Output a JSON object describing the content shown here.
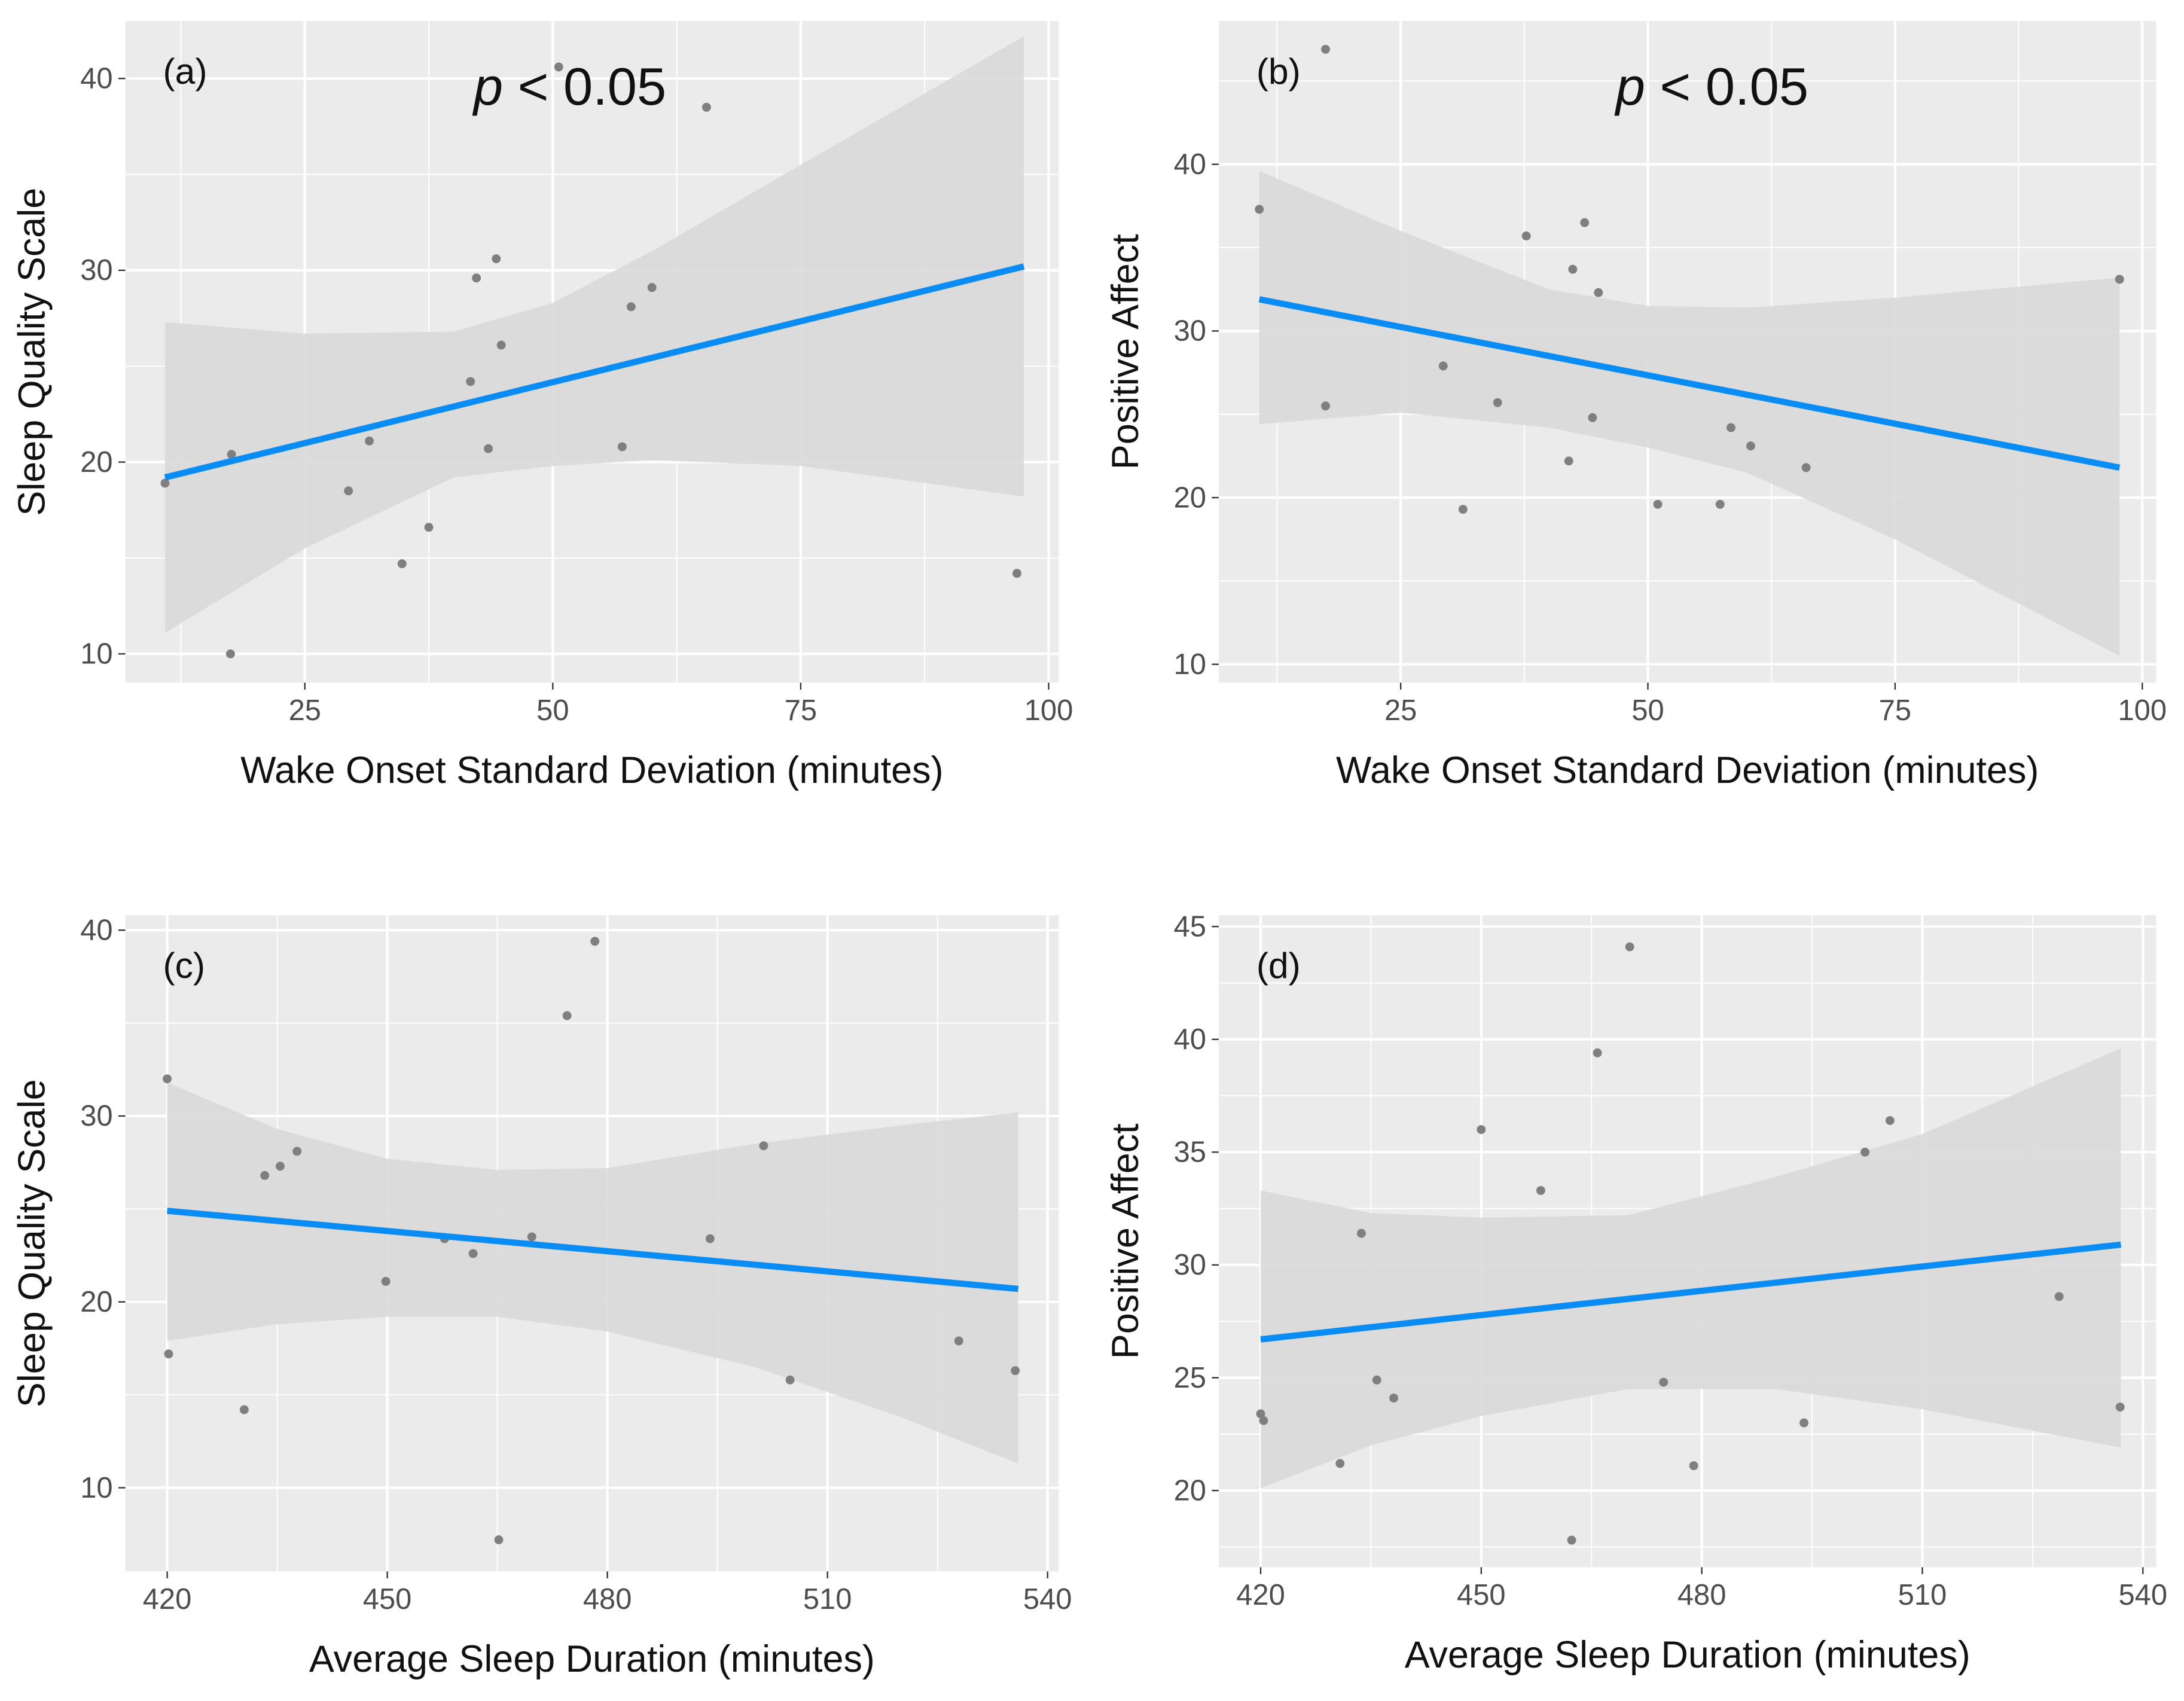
{
  "colors": {
    "panel_bg": "#EBEBEB",
    "grid": "#FFFFFF",
    "ribbon": "#D9D9D9",
    "line": "#0A8CF5",
    "point": "#7F7F7F",
    "tick_text": "#4D4D4D"
  },
  "chart_data": [
    {
      "type": "scatter",
      "panel_label": "(a)",
      "annotation": {
        "p": "p",
        "rest": " < 0.05"
      },
      "xlabel": "Wake Onset Standard Deviation (minutes)",
      "ylabel": "Sleep Quality Scale",
      "xlim": [
        6.9,
        101
      ],
      "ylim": [
        8.5,
        43
      ],
      "xticks": [
        25,
        50,
        75,
        100
      ],
      "yticks": [
        10,
        20,
        30,
        40
      ],
      "points": [
        [
          10.9,
          18.9
        ],
        [
          17.6,
          20.4
        ],
        [
          17.5,
          10.0
        ],
        [
          29.4,
          18.5
        ],
        [
          31.5,
          21.1
        ],
        [
          34.8,
          14.7
        ],
        [
          37.5,
          16.6
        ],
        [
          41.7,
          24.2
        ],
        [
          42.3,
          29.6
        ],
        [
          43.5,
          20.7
        ],
        [
          44.3,
          30.6
        ],
        [
          44.8,
          26.1
        ],
        [
          50.6,
          40.6
        ],
        [
          57.0,
          20.8
        ],
        [
          57.9,
          28.1
        ],
        [
          60.0,
          29.1
        ],
        [
          65.5,
          38.5
        ],
        [
          96.8,
          14.2
        ]
      ],
      "fit": [
        [
          10.9,
          19.2
        ],
        [
          97.5,
          30.2
        ]
      ],
      "ribbon": {
        "x": [
          10.9,
          25,
          40,
          50,
          60,
          75,
          97.5
        ],
        "upper": [
          27.3,
          26.7,
          26.8,
          28.3,
          31.0,
          35.5,
          42.2
        ],
        "lower": [
          11.1,
          15.5,
          19.2,
          19.8,
          20.1,
          19.8,
          18.2
        ]
      }
    },
    {
      "type": "scatter",
      "panel_label": "(b)",
      "annotation": {
        "p": "p",
        "rest": " < 0.05"
      },
      "xlabel": "Wake Onset Standard Deviation (minutes)",
      "ylabel": "Positive Affect",
      "xlim": [
        6.6,
        101.4
      ],
      "ylim": [
        8.9,
        48.6
      ],
      "xticks": [
        25,
        50,
        75,
        100
      ],
      "yticks": [
        10,
        20,
        30,
        40
      ],
      "points": [
        [
          10.7,
          37.3
        ],
        [
          17.4,
          46.9
        ],
        [
          17.4,
          25.5
        ],
        [
          29.3,
          27.9
        ],
        [
          31.3,
          19.3
        ],
        [
          34.8,
          25.7
        ],
        [
          37.7,
          35.7
        ],
        [
          42.0,
          22.2
        ],
        [
          42.4,
          33.7
        ],
        [
          43.6,
          36.5
        ],
        [
          44.4,
          24.8
        ],
        [
          45.0,
          32.3
        ],
        [
          51.0,
          19.6
        ],
        [
          57.3,
          19.6
        ],
        [
          58.4,
          24.2
        ],
        [
          60.4,
          23.1
        ],
        [
          66.0,
          21.8
        ],
        [
          97.7,
          33.1
        ]
      ],
      "fit": [
        [
          10.7,
          31.9
        ],
        [
          97.7,
          21.8
        ]
      ],
      "ribbon": {
        "x": [
          10.7,
          25,
          40,
          50,
          60,
          75,
          97.7
        ],
        "upper": [
          39.6,
          36.0,
          32.5,
          31.5,
          31.4,
          32.0,
          33.2
        ],
        "lower": [
          24.4,
          25.1,
          24.2,
          23.0,
          21.5,
          17.5,
          10.5
        ]
      }
    },
    {
      "type": "scatter",
      "panel_label": "(c)",
      "xlabel": "Average Sleep Duration (minutes)",
      "ylabel": "Sleep Quality Scale",
      "xlim": [
        414.3,
        541.5
      ],
      "ylim": [
        5.5,
        40.8
      ],
      "xticks": [
        420,
        450,
        480,
        510,
        540
      ],
      "yticks": [
        10,
        20,
        30,
        40
      ],
      "points": [
        [
          420,
          32.0
        ],
        [
          420.2,
          17.2
        ],
        [
          430.5,
          14.2
        ],
        [
          433.3,
          26.8
        ],
        [
          435.4,
          27.3
        ],
        [
          437.7,
          28.1
        ],
        [
          449.8,
          21.1
        ],
        [
          457.8,
          23.4
        ],
        [
          461.7,
          22.6
        ],
        [
          465.2,
          7.2
        ],
        [
          469.7,
          23.5
        ],
        [
          474.5,
          35.4
        ],
        [
          478.3,
          39.4
        ],
        [
          494,
          23.4
        ],
        [
          501.3,
          28.4
        ],
        [
          504.9,
          15.8
        ],
        [
          527.9,
          17.9
        ],
        [
          535.6,
          16.3
        ]
      ],
      "fit": [
        [
          420,
          24.9
        ],
        [
          536,
          20.7
        ]
      ],
      "ribbon": {
        "x": [
          420,
          435,
          450,
          465,
          480,
          500,
          520,
          536
        ],
        "upper": [
          31.8,
          29.3,
          27.7,
          27.1,
          27.2,
          28.5,
          29.5,
          30.2
        ],
        "lower": [
          17.9,
          18.8,
          19.2,
          19.2,
          18.4,
          16.5,
          13.8,
          11.3
        ]
      }
    },
    {
      "type": "scatter",
      "panel_label": "(d)",
      "xlabel": "Average Sleep Duration (minutes)",
      "ylabel": "Positive Affect",
      "xlim": [
        414.3,
        541.8
      ],
      "ylim": [
        16.6,
        45.5
      ],
      "xticks": [
        420,
        450,
        480,
        510,
        540
      ],
      "yticks": [
        20,
        25,
        30,
        35,
        40,
        45
      ],
      "points": [
        [
          420,
          23.4
        ],
        [
          420.4,
          23.1
        ],
        [
          430.8,
          21.2
        ],
        [
          433.7,
          31.4
        ],
        [
          435.8,
          24.9
        ],
        [
          438.1,
          24.1
        ],
        [
          450,
          36.0
        ],
        [
          458.1,
          33.3
        ],
        [
          462.3,
          17.8
        ],
        [
          465.8,
          39.4
        ],
        [
          470.2,
          44.1
        ],
        [
          474.8,
          24.8
        ],
        [
          478.9,
          21.1
        ],
        [
          493.9,
          23.0
        ],
        [
          502.2,
          35.0
        ],
        [
          505.6,
          36.4
        ],
        [
          528.6,
          28.6
        ],
        [
          536.9,
          23.7
        ]
      ],
      "fit": [
        [
          420,
          26.7
        ],
        [
          537,
          30.9
        ]
      ],
      "ribbon": {
        "x": [
          420,
          435,
          450,
          470,
          490,
          510,
          537
        ],
        "upper": [
          33.3,
          32.3,
          32.1,
          32.2,
          33.9,
          35.8,
          39.6
        ],
        "lower": [
          20.1,
          22.0,
          23.3,
          24.5,
          24.5,
          23.6,
          21.9
        ]
      }
    }
  ]
}
